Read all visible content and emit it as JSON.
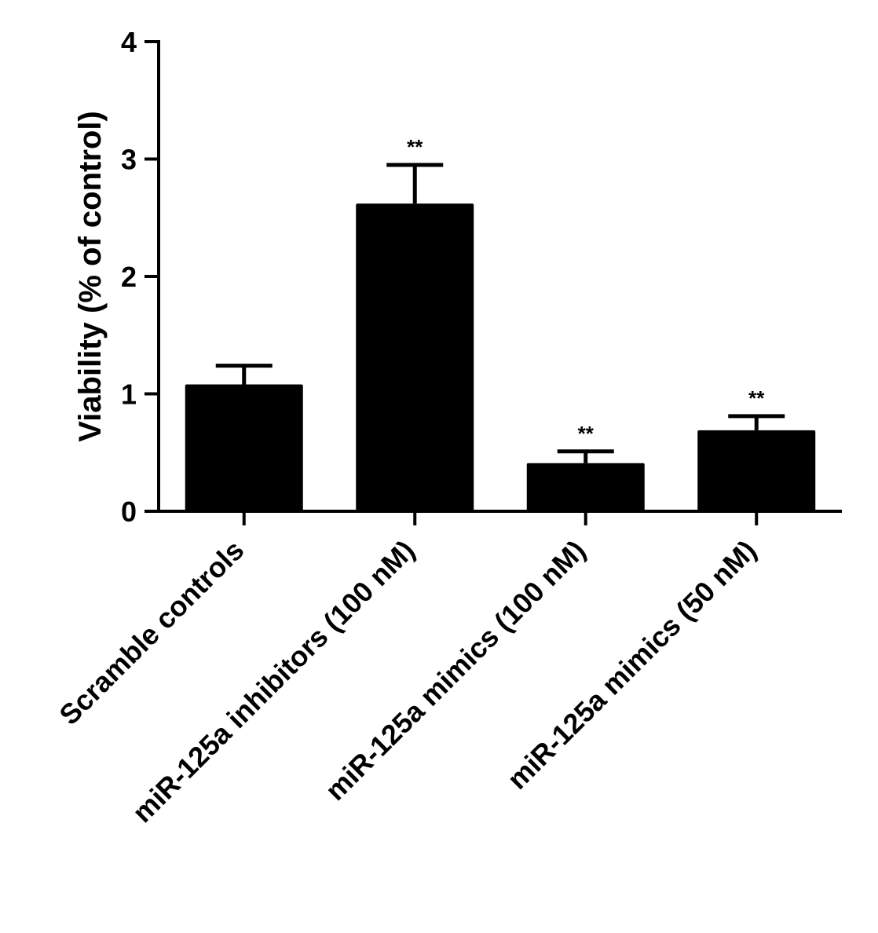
{
  "chart_data": {
    "type": "bar",
    "categories": [
      "Scramble controls",
      "miR-125a inhibitors (100 nM)",
      "miR-125a mimics (100 nM)",
      "miR-125a mimics (50 nM)"
    ],
    "values": [
      1.08,
      2.62,
      0.41,
      0.69
    ],
    "error_upper": [
      1.24,
      2.95,
      0.51,
      0.81
    ],
    "significance": [
      "",
      "**",
      "**",
      "**"
    ],
    "ylabel": "Viability (% of control)",
    "xlabel": "",
    "title": "",
    "ylim": [
      0,
      4
    ],
    "yticks": [
      "0",
      "1",
      "2",
      "3",
      "4"
    ],
    "bar_color": "#000000",
    "grid": false
  }
}
